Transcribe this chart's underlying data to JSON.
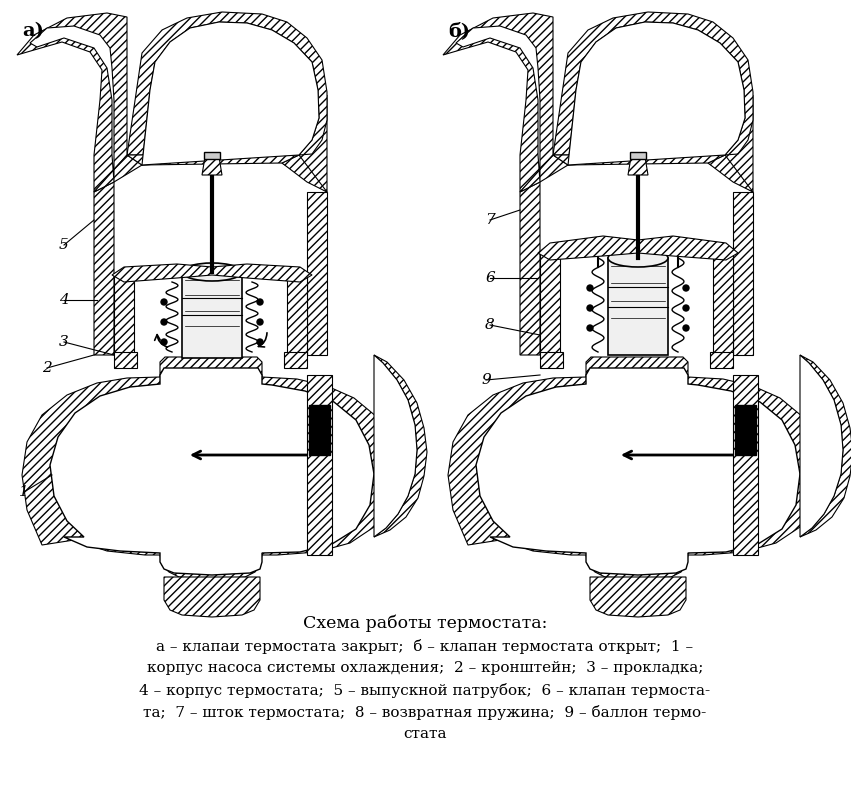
{
  "title": "Схема работы термостата:",
  "caption_lines": [
    "а – клапаи термостата закрыт;  б – клапан термостата открыт;  1 –",
    "корпус насоса системы охлаждения;  2 – кронштейн;  3 – прокладка;",
    "4 – корпус термостата;  5 – выпускной патрубок;  6 – клапан термоста-",
    "та;  7 – шток термостата;  8 – возвратная пружина;  9 – баллон термо-",
    "стата"
  ],
  "label_a": "а)",
  "label_b": "б)",
  "bg_color": "#ffffff",
  "fig_width": 8.51,
  "fig_height": 8.02,
  "dpi": 100
}
